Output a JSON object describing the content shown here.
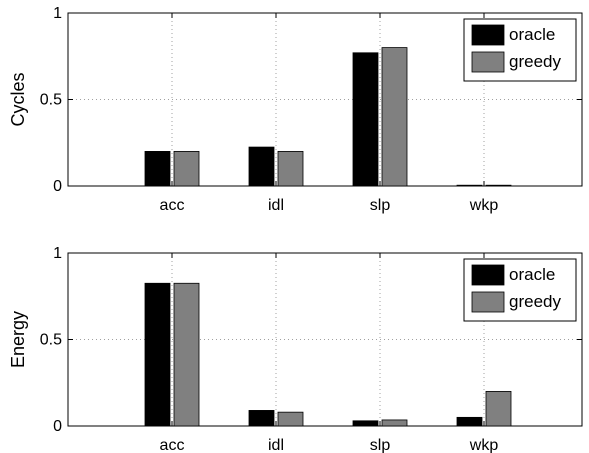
{
  "chart_data": [
    {
      "type": "bar",
      "categories": [
        "acc",
        "idl",
        "slp",
        "wkp"
      ],
      "series": [
        {
          "name": "oracle",
          "values": [
            0.2,
            0.225,
            0.77,
            0.003
          ]
        },
        {
          "name": "greedy",
          "values": [
            0.2,
            0.2,
            0.8,
            0.003
          ]
        }
      ],
      "title": "",
      "xlabel": "",
      "ylabel": "Cycles",
      "ylim": [
        0,
        1
      ],
      "yticks": [
        "0",
        "0.5",
        "1"
      ],
      "grid": true,
      "legend": "top-right"
    },
    {
      "type": "bar",
      "categories": [
        "acc",
        "idl",
        "slp",
        "wkp"
      ],
      "series": [
        {
          "name": "oracle",
          "values": [
            0.825,
            0.09,
            0.03,
            0.05
          ]
        },
        {
          "name": "greedy",
          "values": [
            0.825,
            0.08,
            0.035,
            0.2
          ]
        }
      ],
      "title": "",
      "xlabel": "",
      "ylabel": "Energy",
      "ylim": [
        0,
        1
      ],
      "yticks": [
        "0",
        "0.5",
        "1"
      ],
      "grid": true,
      "legend": "top-right"
    }
  ],
  "colors": {
    "oracle": "#000000",
    "greedy": "#808080"
  }
}
